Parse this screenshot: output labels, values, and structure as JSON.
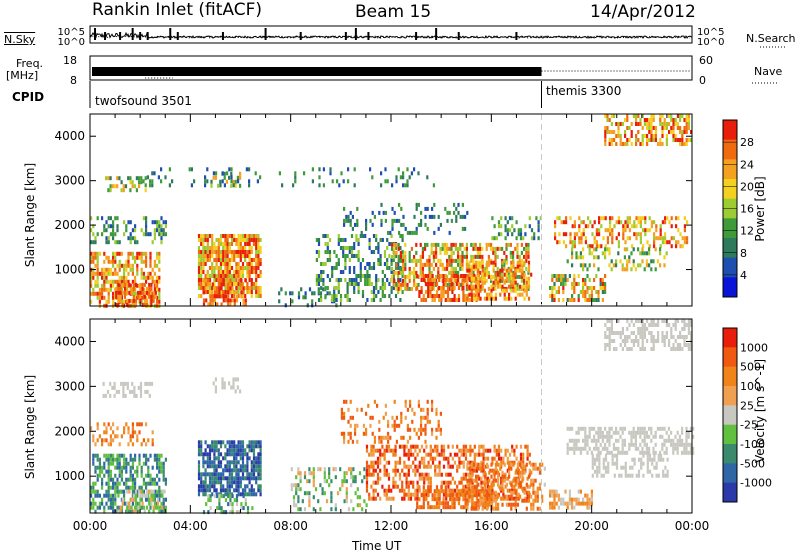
{
  "header": {
    "title": "Rankin Inlet (fitACF)",
    "beam": "Beam 15",
    "date": "14/Apr/2012"
  },
  "panel_labels": {
    "nsky": "N.Sky",
    "nsearch": "N.Search",
    "freq_line1": "Freq.",
    "freq_line2": "[MHz]",
    "nave": "Nave",
    "cpid": "CPID"
  },
  "chart_data": [
    {
      "type": "line",
      "name": "noise",
      "series": [
        {
          "name": "N.Sky",
          "style": "solid"
        },
        {
          "name": "N.Search",
          "style": "dotted"
        }
      ],
      "y_ticks_left": [
        "10^5",
        "10^0"
      ],
      "y_ticks_right": [
        "10^5",
        "10^0"
      ],
      "scale": "log"
    },
    {
      "type": "line",
      "name": "frequency-nave",
      "series": [
        {
          "name": "Freq.",
          "unit": "MHz",
          "style": "solid"
        },
        {
          "name": "Nave",
          "style": "dotted"
        }
      ],
      "y_ticks_left": [
        "18",
        "8"
      ],
      "y_ticks_right": [
        "60",
        "0"
      ]
    },
    {
      "type": "table",
      "name": "cpid",
      "segments": [
        {
          "label": "twofsound 3501",
          "start_hour": 0,
          "end_hour": 18
        },
        {
          "label": "themis 3300",
          "start_hour": 18,
          "end_hour": 24
        }
      ]
    },
    {
      "type": "heatmap",
      "name": "power",
      "ylabel": "Slant Range [km]",
      "y_ticks": [
        "1000",
        "2000",
        "3000",
        "4000"
      ],
      "ylim": [
        180,
        4500
      ],
      "xlim": [
        0,
        24
      ],
      "colorbar_label": "Power [dB]",
      "colorbar_ticks": [
        "4",
        "8",
        "12",
        "16",
        "20",
        "24",
        "28"
      ],
      "colorbar_range": [
        0,
        32
      ],
      "colors": [
        "#0a14d8",
        "#1e4fb0",
        "#2e7a5c",
        "#3f9a3a",
        "#9ccc32",
        "#f4d020",
        "#f4a020",
        "#f06a10",
        "#e81e0a"
      ]
    },
    {
      "type": "heatmap",
      "name": "velocity",
      "ylabel": "Slant Range [km]",
      "y_ticks": [
        "1000",
        "2000",
        "3000",
        "4000"
      ],
      "ylim": [
        180,
        4500
      ],
      "xlim": [
        0,
        24
      ],
      "colorbar_label": "Velocity [m s^-1]",
      "colorbar_ticks": [
        "1000",
        "500",
        "100",
        "25",
        "-25",
        "-100",
        "-500",
        "-1000"
      ],
      "colors": [
        "#2a3aa8",
        "#2e66a6",
        "#3a8a6e",
        "#62c040",
        "#c8c8c0",
        "#f0a050",
        "#f08418",
        "#f05a10",
        "#e81e0a"
      ],
      "x_ticks": [
        "00:00",
        "04:00",
        "08:00",
        "12:00",
        "16:00",
        "20:00",
        "00:00"
      ],
      "xlabel": "Time UT"
    }
  ]
}
